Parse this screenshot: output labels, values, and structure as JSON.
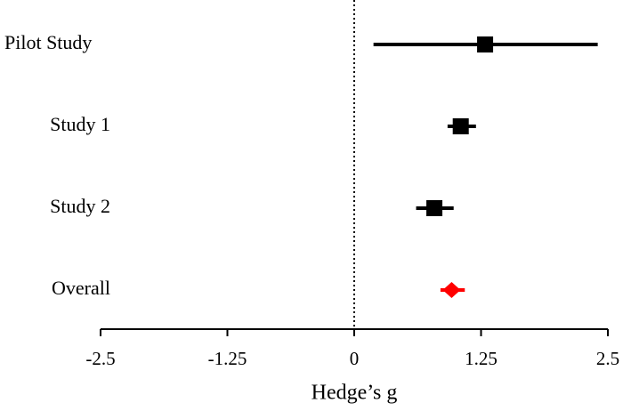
{
  "chart_data": {
    "type": "forest",
    "categories": [
      "Pilot Study",
      "Study 1",
      "Study 2",
      "Overall"
    ],
    "values": [
      1.29,
      1.05,
      0.79,
      0.96
    ],
    "lower": [
      0.19,
      0.92,
      0.61,
      0.85
    ],
    "upper": [
      2.4,
      1.2,
      0.98,
      1.09
    ],
    "markers": [
      "square",
      "square",
      "square",
      "diamond"
    ],
    "colors": [
      "#000000",
      "#000000",
      "#000000",
      "#ff0000"
    ],
    "xlim": [
      -2.5,
      2.5
    ],
    "xticks": [
      -2.5,
      -1.25,
      0,
      1.25,
      2.5
    ],
    "xlabel": "Hedge’s g",
    "reference_line": 0
  }
}
